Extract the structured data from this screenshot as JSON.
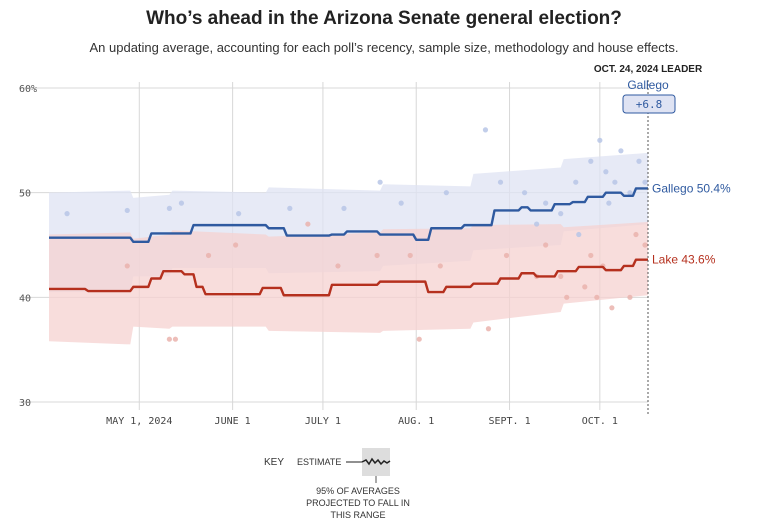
{
  "chart_data": {
    "type": "line",
    "title": "Who’s ahead in the Arizona Senate general election?",
    "subtitle": "An updating average, accounting for each poll’s recency, sample size, methodology and house effects.",
    "ylim": [
      30,
      60
    ],
    "y_ticks": [
      {
        "value": 30,
        "label": "30"
      },
      {
        "value": 40,
        "label": "40"
      },
      {
        "value": 50,
        "label": "50"
      },
      {
        "value": 60,
        "label": "60%"
      }
    ],
    "x_range": [
      0,
      199
    ],
    "x_ticks": [
      {
        "day": 30,
        "label": "MAY 1, 2024"
      },
      {
        "day": 61,
        "label": "JUNE 1"
      },
      {
        "day": 91,
        "label": "JULY 1"
      },
      {
        "day": 122,
        "label": "AUG. 1"
      },
      {
        "day": 153,
        "label": "SEPT. 1"
      },
      {
        "day": 183,
        "label": "OCT. 1"
      }
    ],
    "leader": {
      "day": 199,
      "date_label": "OCT. 24, 2024 LEADER",
      "name": "Gallego",
      "margin": "+6.8"
    },
    "series": [
      {
        "name": "Gallego",
        "end_label": "Gallego 50.4%",
        "color": "#2f5aa0",
        "band_color": "#dfe3f3",
        "dot_color": "#b7c5e6",
        "x": [
          0,
          27,
          28,
          33,
          34,
          47,
          48,
          72,
          73,
          78,
          79,
          93,
          94,
          98,
          99,
          109,
          110,
          121,
          122,
          126,
          127,
          137,
          138,
          147,
          148,
          156,
          157,
          159,
          160,
          167,
          168,
          173,
          174,
          178,
          179,
          184,
          185,
          190,
          191,
          194,
          195,
          199
        ],
        "values": [
          45.7,
          45.7,
          45.3,
          45.3,
          46.1,
          46.1,
          46.9,
          46.9,
          46.6,
          46.6,
          45.9,
          45.9,
          46.0,
          46.0,
          46.3,
          46.3,
          46.0,
          46.0,
          45.5,
          45.5,
          46.6,
          46.6,
          46.9,
          46.9,
          48.3,
          48.3,
          48.6,
          48.6,
          48.3,
          48.3,
          48.9,
          48.9,
          49.1,
          49.1,
          49.6,
          49.6,
          50.0,
          50.0,
          49.7,
          49.7,
          50.4,
          50.4
        ],
        "band_x": [
          0,
          27,
          28,
          40,
          41,
          72,
          73,
          110,
          111,
          140,
          141,
          170,
          171,
          199
        ],
        "band_low": [
          40.5,
          40.5,
          42.0,
          42.0,
          42.8,
          42.8,
          42.3,
          42.5,
          43.0,
          43.5,
          44.5,
          45.0,
          46.3,
          47.0
        ],
        "band_high": [
          50.0,
          50.2,
          49.5,
          49.8,
          50.2,
          50.0,
          50.5,
          50.2,
          50.8,
          50.6,
          51.8,
          52.4,
          53.2,
          53.8
        ],
        "dots": [
          [
            6,
            48
          ],
          [
            26,
            48.3
          ],
          [
            40,
            48.5
          ],
          [
            44,
            49
          ],
          [
            63,
            48
          ],
          [
            80,
            48.5
          ],
          [
            98,
            48.5
          ],
          [
            110,
            51
          ],
          [
            117,
            49
          ],
          [
            132,
            50
          ],
          [
            145,
            56
          ],
          [
            150,
            51
          ],
          [
            158,
            50
          ],
          [
            165,
            49
          ],
          [
            170,
            48
          ],
          [
            175,
            51
          ],
          [
            180,
            53
          ],
          [
            183,
            55
          ],
          [
            185,
            52
          ],
          [
            188,
            51
          ],
          [
            190,
            54
          ],
          [
            193,
            50
          ],
          [
            196,
            53
          ],
          [
            198,
            51
          ],
          [
            186,
            49
          ],
          [
            176,
            46
          ],
          [
            162,
            47
          ]
        ]
      },
      {
        "name": "Lake",
        "end_label": "Lake 43.6%",
        "color": "#b5301e",
        "band_color": "#f5d2d0",
        "dot_color": "#eab3ad",
        "x": [
          0,
          12,
          13,
          27,
          28,
          33,
          34,
          37,
          38,
          44,
          45,
          48,
          49,
          51,
          52,
          70,
          71,
          77,
          78,
          93,
          94,
          109,
          110,
          125,
          126,
          131,
          132,
          140,
          141,
          149,
          150,
          156,
          157,
          161,
          162,
          168,
          169,
          175,
          176,
          184,
          185,
          190,
          191,
          194,
          195,
          199
        ],
        "values": [
          40.8,
          40.8,
          40.6,
          40.6,
          41.0,
          41.0,
          41.8,
          41.8,
          42.5,
          42.5,
          42.2,
          42.2,
          41.0,
          41.0,
          40.3,
          40.3,
          40.9,
          40.9,
          40.2,
          40.2,
          41.2,
          41.2,
          41.5,
          41.5,
          40.5,
          40.5,
          41.0,
          41.0,
          41.3,
          41.3,
          41.8,
          41.8,
          42.3,
          42.3,
          42.0,
          42.0,
          42.5,
          42.5,
          42.9,
          42.9,
          42.6,
          42.6,
          43.0,
          43.0,
          43.6,
          43.6
        ],
        "band_x": [
          0,
          27,
          28,
          40,
          41,
          72,
          73,
          110,
          111,
          140,
          141,
          170,
          171,
          199
        ],
        "band_low": [
          35.8,
          35.5,
          37.2,
          37.0,
          37.2,
          37.2,
          36.8,
          36.6,
          36.8,
          37.0,
          37.6,
          38.6,
          39.4,
          40.2
        ],
        "band_high": [
          46.0,
          46.2,
          45.6,
          46.0,
          46.4,
          46.0,
          45.8,
          46.2,
          46.5,
          46.6,
          46.9,
          47.0,
          46.7,
          47.2
        ],
        "dots": [
          [
            26,
            43
          ],
          [
            40,
            36
          ],
          [
            42,
            36
          ],
          [
            53,
            44
          ],
          [
            62,
            45
          ],
          [
            86,
            47
          ],
          [
            96,
            43
          ],
          [
            109,
            44
          ],
          [
            120,
            44
          ],
          [
            123,
            36
          ],
          [
            130,
            43
          ],
          [
            146,
            37
          ],
          [
            152,
            44
          ],
          [
            165,
            45
          ],
          [
            170,
            42
          ],
          [
            172,
            40
          ],
          [
            178,
            41
          ],
          [
            182,
            40
          ],
          [
            184,
            43
          ],
          [
            187,
            39
          ],
          [
            193,
            40
          ],
          [
            195,
            46
          ],
          [
            198,
            45
          ],
          [
            180,
            44
          ],
          [
            162,
            42
          ]
        ]
      }
    ],
    "key": {
      "label": "KEY",
      "estimate_label": "ESTIMATE",
      "band_line1": "95% OF AVERAGES",
      "band_line2": "PROJECTED TO FALL IN",
      "band_line3": "THIS RANGE"
    }
  }
}
